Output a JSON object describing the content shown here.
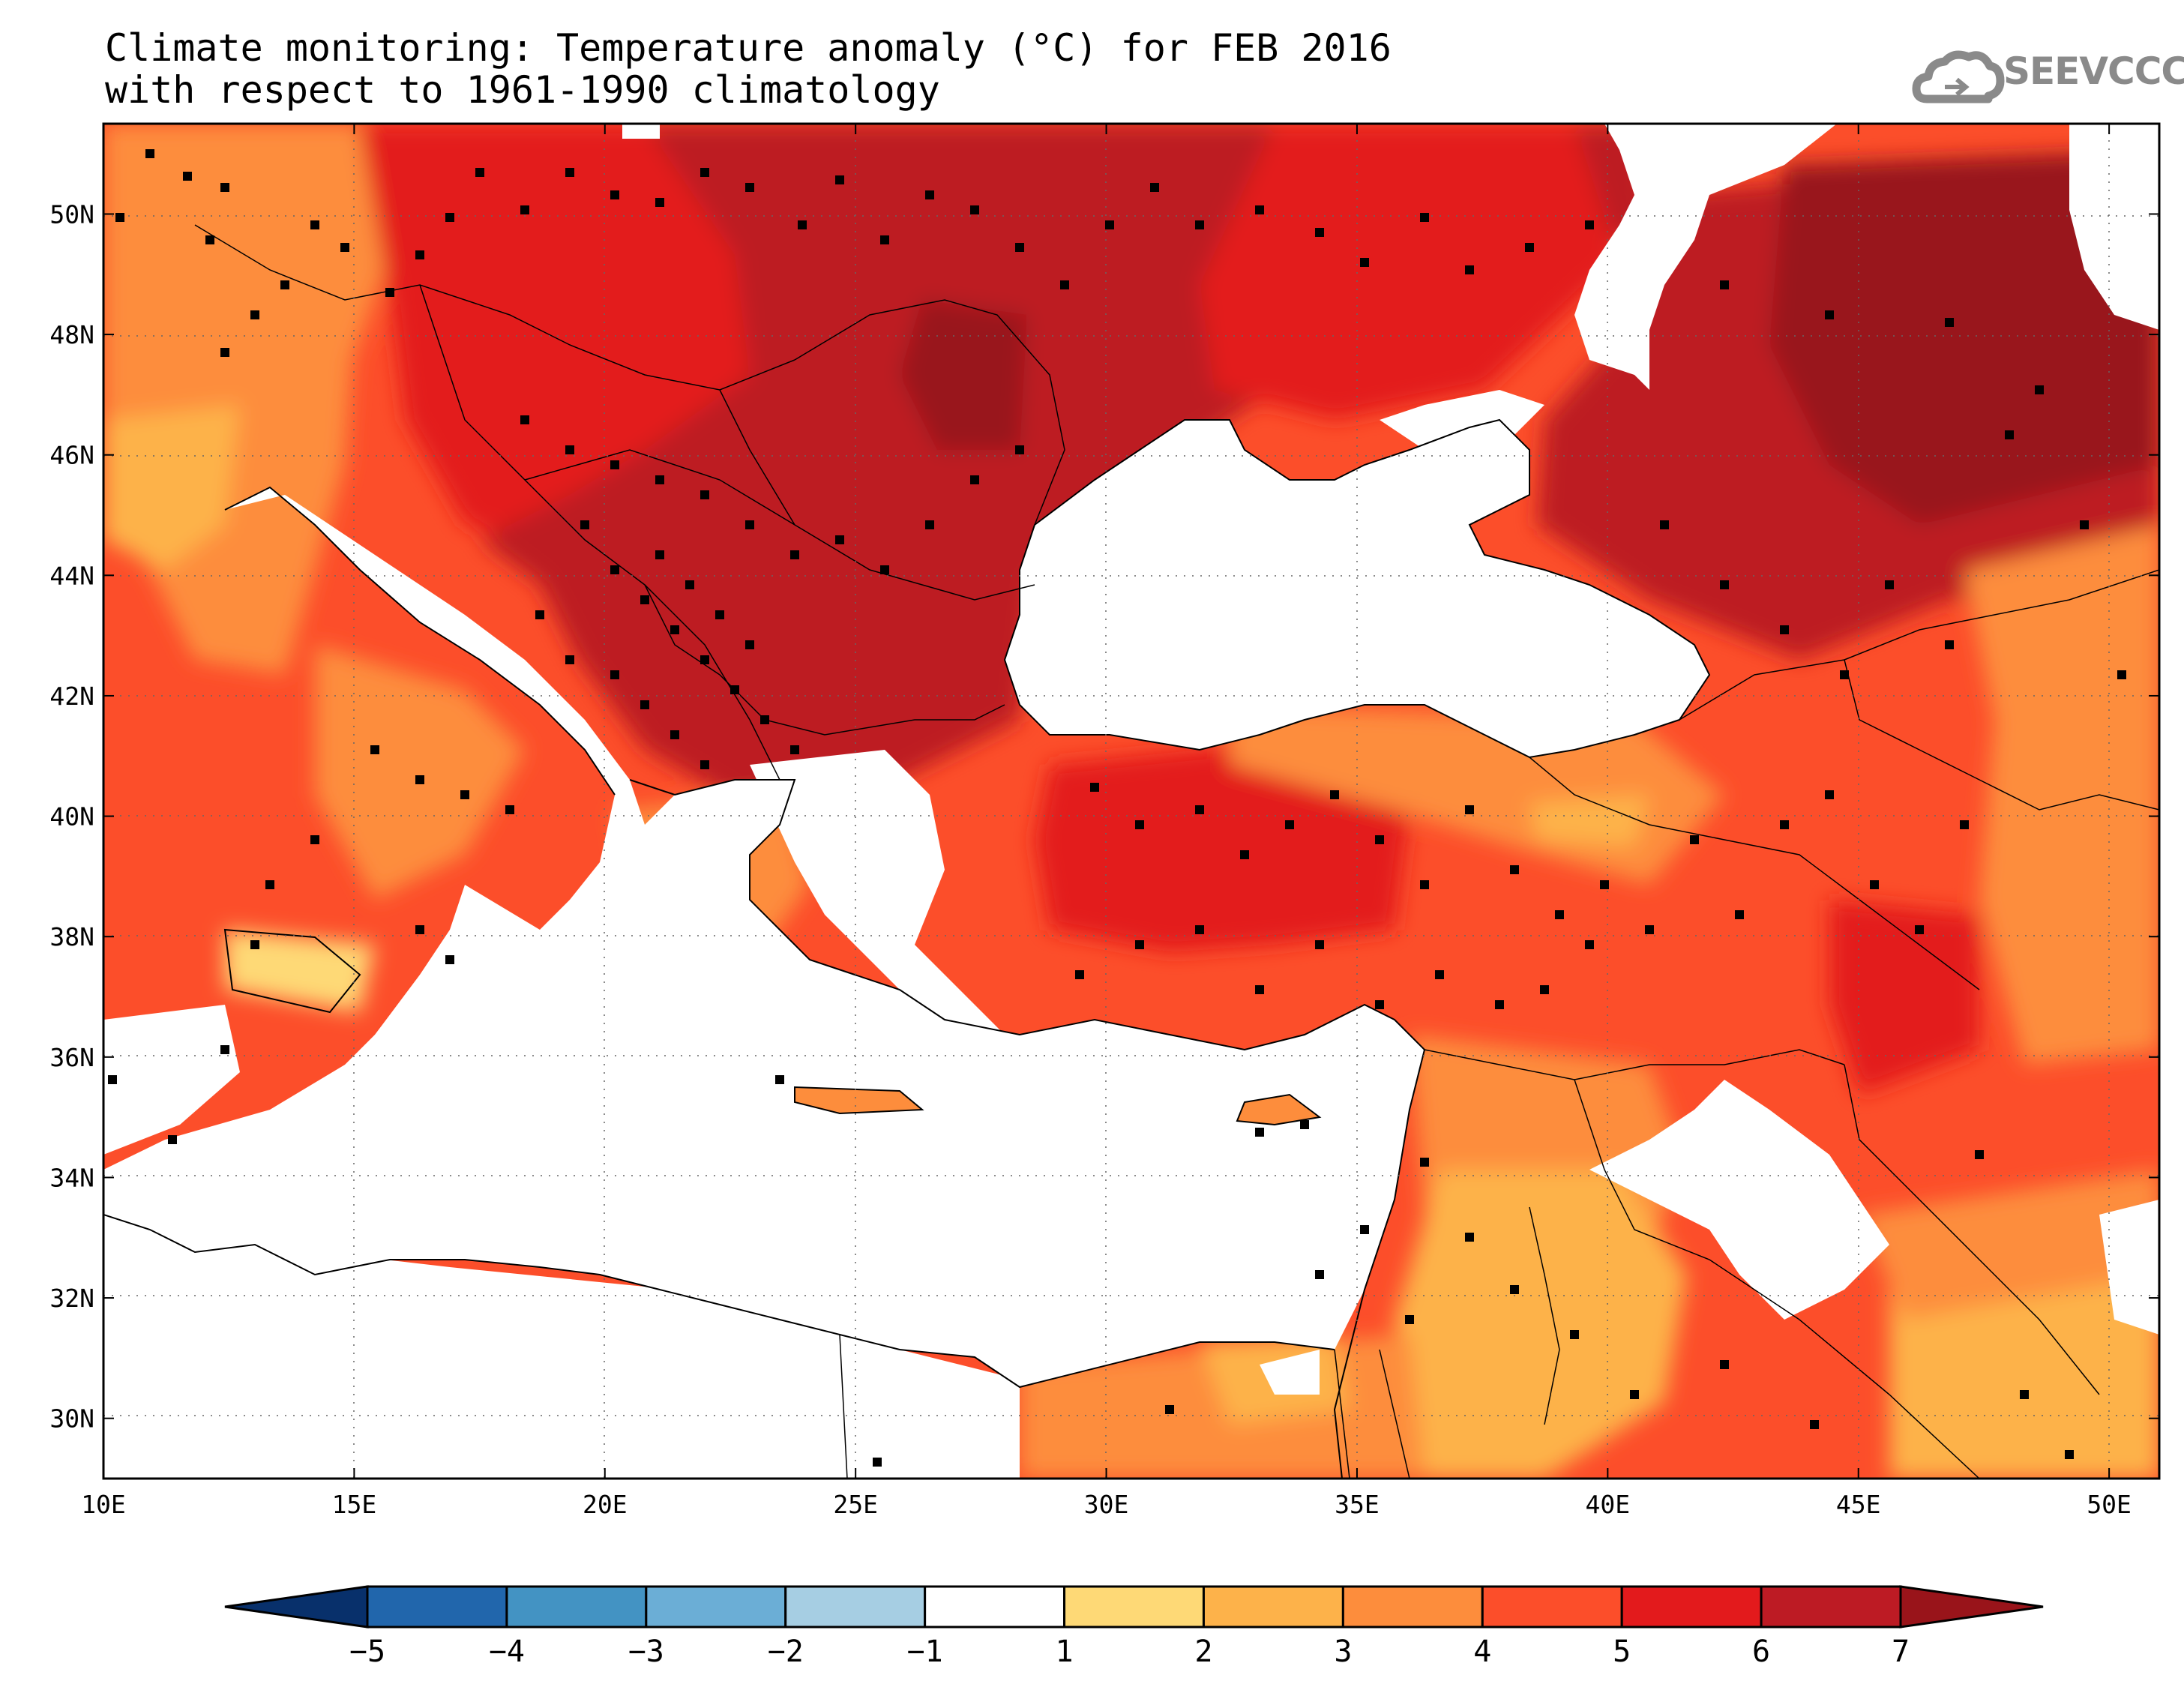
{
  "title": {
    "line1": "Climate monitoring: Temperature anomaly (°C) for FEB 2016",
    "line2": "with respect to 1961-1990 climatology"
  },
  "logo": {
    "text": "SEEVCCC",
    "icon": "cloud-icon"
  },
  "map": {
    "longitude_range": [
      10,
      51
    ],
    "latitude_range": [
      29,
      51.5
    ],
    "lon_ticks": [
      "10E",
      "15E",
      "20E",
      "25E",
      "30E",
      "35E",
      "40E",
      "45E",
      "50E"
    ],
    "lat_ticks": [
      "30N",
      "32N",
      "34N",
      "36N",
      "38N",
      "40N",
      "42N",
      "44N",
      "46N",
      "48N",
      "50N"
    ],
    "grid": "dotted"
  },
  "colorbar": {
    "labels": [
      "-5",
      "-4",
      "-3",
      "-2",
      "-1",
      "1",
      "2",
      "3",
      "4",
      "5",
      "6",
      "7"
    ],
    "colors": [
      "#08306b",
      "#2166ac",
      "#4393c3",
      "#6baed6",
      "#a6cee3",
      "#ffffff",
      "#fed976",
      "#fdb24a",
      "#fd8d3c",
      "#fc4e2a",
      "#e31a1c",
      "#bd1b24",
      "#99141a"
    ]
  },
  "colors": {
    "land_outline": "#000000",
    "station": "#000000",
    "anomaly_1_2": "#fed976",
    "anomaly_2_3": "#fdb24a",
    "anomaly_3_4": "#fd8d3c",
    "anomaly_4_5": "#fc4e2a",
    "anomaly_5_6": "#e31a1c",
    "anomaly_6_7": "#bd1b24",
    "anomaly_gt_7": "#99141a"
  }
}
